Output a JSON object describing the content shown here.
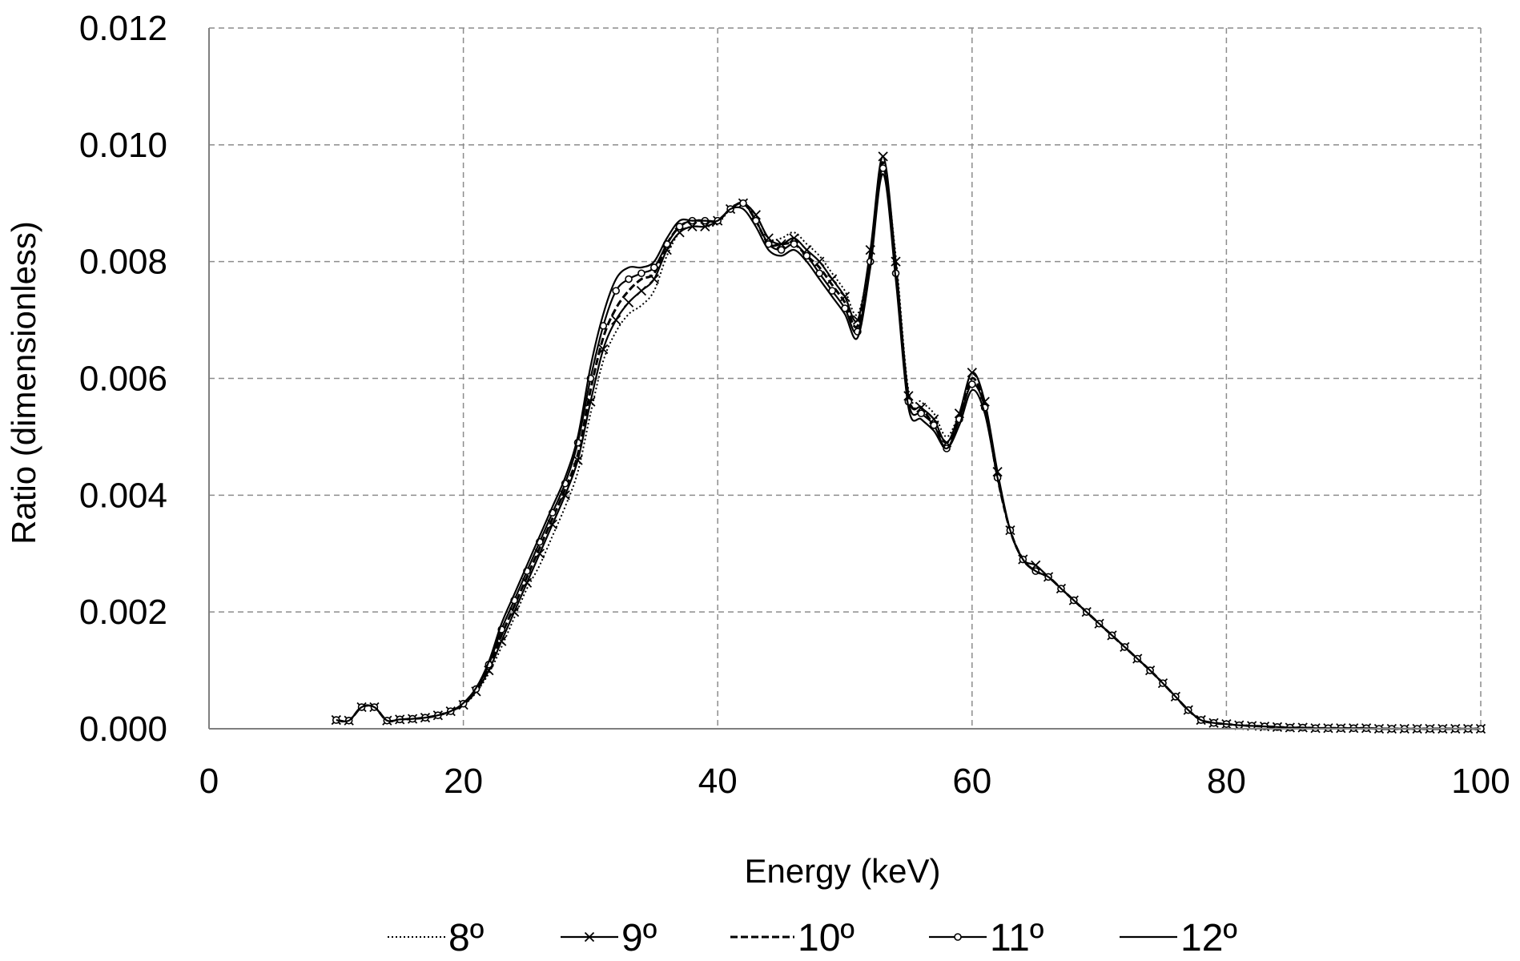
{
  "chart_data": {
    "type": "line",
    "xlabel": "Energy (keV)",
    "ylabel": "Ratio (dimensionless)",
    "xlim": [
      0,
      100
    ],
    "ylim": [
      0,
      0.012
    ],
    "x_ticks": [
      "0",
      "20",
      "40",
      "60",
      "80",
      "100"
    ],
    "y_ticks": [
      "0.000",
      "0.002",
      "0.004",
      "0.006",
      "0.008",
      "0.010",
      "0.012"
    ],
    "grid": true,
    "legend_position": "bottom",
    "line_color": "#000000",
    "grid_color": "#8c8c8c",
    "series": [
      {
        "name": "8º",
        "style": "dotted",
        "x": [
          10,
          11,
          12,
          13,
          14,
          15,
          16,
          17,
          18,
          19,
          20,
          21,
          22,
          23,
          24,
          25,
          26,
          27,
          28,
          29,
          30,
          31,
          32,
          33,
          34,
          35,
          36,
          37,
          38,
          39,
          40,
          41,
          42,
          43,
          44,
          45,
          46,
          47,
          48,
          49,
          50,
          51,
          52,
          53,
          54,
          55,
          56,
          57,
          58,
          59,
          60,
          61,
          62,
          63,
          64,
          65,
          66,
          67,
          68,
          69,
          70,
          71,
          72,
          73,
          74,
          75,
          76,
          77,
          78,
          79,
          80,
          81,
          82,
          83,
          84,
          85,
          86,
          87,
          88,
          89,
          90,
          91,
          92,
          93,
          94,
          95,
          96,
          97,
          98,
          99,
          100
        ],
        "y": [
          0.00015,
          0.00014,
          0.00037,
          0.00037,
          0.00014,
          0.00016,
          0.00017,
          0.00019,
          0.00023,
          0.0003,
          0.0004,
          0.00062,
          0.00095,
          0.0014,
          0.0019,
          0.0024,
          0.0028,
          0.0033,
          0.0038,
          0.0044,
          0.0054,
          0.0063,
          0.0068,
          0.0071,
          0.00725,
          0.0075,
          0.0081,
          0.0085,
          0.0086,
          0.0086,
          0.00865,
          0.0089,
          0.009,
          0.0088,
          0.0084,
          0.0084,
          0.0085,
          0.0083,
          0.0081,
          0.0078,
          0.0075,
          0.0071,
          0.0081,
          0.0096,
          0.0081,
          0.0058,
          0.0056,
          0.0054,
          0.005,
          0.0054,
          0.0059,
          0.0056,
          0.0043,
          0.0034,
          0.0029,
          0.0028,
          0.0026,
          0.0024,
          0.0022,
          0.002,
          0.0018,
          0.0016,
          0.0014,
          0.0012,
          0.001,
          0.00078,
          0.00055,
          0.00032,
          0.00015,
          0.0001,
          8e-05,
          6e-05,
          5e-05,
          4e-05,
          3e-05,
          2e-05,
          2e-05,
          1e-05,
          1e-05,
          1e-05,
          1e-05,
          1e-05,
          0,
          0,
          0,
          0,
          0,
          0,
          0,
          0,
          0
        ]
      },
      {
        "name": "9º",
        "style": "solid-x",
        "x": [
          10,
          11,
          12,
          13,
          14,
          15,
          16,
          17,
          18,
          19,
          20,
          21,
          22,
          23,
          24,
          25,
          26,
          27,
          28,
          29,
          30,
          31,
          32,
          33,
          34,
          35,
          36,
          37,
          38,
          39,
          40,
          41,
          42,
          43,
          44,
          45,
          46,
          47,
          48,
          49,
          50,
          51,
          52,
          53,
          54,
          55,
          56,
          57,
          58,
          59,
          60,
          61,
          62,
          63,
          64,
          65,
          66,
          67,
          68,
          69,
          70,
          71,
          72,
          73,
          74,
          75,
          76,
          77,
          78,
          79,
          80,
          81,
          82,
          83,
          84,
          85,
          86,
          87,
          88,
          89,
          90,
          91,
          92,
          93,
          94,
          95,
          96,
          97,
          98,
          99,
          100
        ],
        "y": [
          0.00015,
          0.00014,
          0.00037,
          0.00037,
          0.00014,
          0.00016,
          0.00017,
          0.00019,
          0.00023,
          0.0003,
          0.00041,
          0.00064,
          0.001,
          0.0015,
          0.002,
          0.0025,
          0.003,
          0.0035,
          0.004,
          0.0046,
          0.0056,
          0.0065,
          0.007,
          0.0073,
          0.0075,
          0.0077,
          0.0082,
          0.0085,
          0.0086,
          0.0086,
          0.0087,
          0.0089,
          0.009,
          0.0088,
          0.0084,
          0.0083,
          0.0084,
          0.0082,
          0.008,
          0.0077,
          0.0074,
          0.007,
          0.0082,
          0.0098,
          0.008,
          0.0057,
          0.0055,
          0.0053,
          0.0049,
          0.0054,
          0.0061,
          0.0056,
          0.0044,
          0.0034,
          0.0029,
          0.0028,
          0.0026,
          0.0024,
          0.0022,
          0.002,
          0.0018,
          0.0016,
          0.0014,
          0.0012,
          0.001,
          0.00078,
          0.00055,
          0.00032,
          0.00015,
          0.0001,
          8e-05,
          6e-05,
          5e-05,
          4e-05,
          3e-05,
          2e-05,
          2e-05,
          1e-05,
          1e-05,
          1e-05,
          1e-05,
          1e-05,
          0,
          0,
          0,
          0,
          0,
          0,
          0,
          0,
          0
        ]
      },
      {
        "name": "10º",
        "style": "dashed",
        "x": [
          10,
          11,
          12,
          13,
          14,
          15,
          16,
          17,
          18,
          19,
          20,
          21,
          22,
          23,
          24,
          25,
          26,
          27,
          28,
          29,
          30,
          31,
          32,
          33,
          34,
          35,
          36,
          37,
          38,
          39,
          40,
          41,
          42,
          43,
          44,
          45,
          46,
          47,
          48,
          49,
          50,
          51,
          52,
          53,
          54,
          55,
          56,
          57,
          58,
          59,
          60,
          61,
          62,
          63,
          64,
          65,
          66,
          67,
          68,
          69,
          70,
          71,
          72,
          73,
          74,
          75,
          76,
          77,
          78,
          79,
          80,
          81,
          82,
          83,
          84,
          85,
          86,
          87,
          88,
          89,
          90,
          91,
          92,
          93,
          94,
          95,
          96,
          97,
          98,
          99,
          100
        ],
        "y": [
          0.00015,
          0.00014,
          0.00037,
          0.00037,
          0.00014,
          0.00016,
          0.00017,
          0.00019,
          0.00023,
          0.0003,
          0.00042,
          0.00066,
          0.00105,
          0.0016,
          0.0021,
          0.0026,
          0.0031,
          0.0036,
          0.0041,
          0.0047,
          0.0058,
          0.0067,
          0.0072,
          0.0075,
          0.0077,
          0.0078,
          0.0083,
          0.0086,
          0.0087,
          0.0087,
          0.0087,
          0.0089,
          0.009,
          0.0087,
          0.0083,
          0.0083,
          0.0083,
          0.0081,
          0.0079,
          0.0076,
          0.0073,
          0.0069,
          0.0081,
          0.0097,
          0.0079,
          0.0057,
          0.0055,
          0.0052,
          0.0049,
          0.0053,
          0.006,
          0.0055,
          0.0043,
          0.0034,
          0.0029,
          0.0027,
          0.0026,
          0.0024,
          0.0022,
          0.002,
          0.0018,
          0.0016,
          0.0014,
          0.0012,
          0.001,
          0.00078,
          0.00055,
          0.00032,
          0.00015,
          0.0001,
          8e-05,
          6e-05,
          5e-05,
          4e-05,
          3e-05,
          2e-05,
          2e-05,
          1e-05,
          1e-05,
          1e-05,
          1e-05,
          1e-05,
          0,
          0,
          0,
          0,
          0,
          0,
          0,
          0,
          0
        ]
      },
      {
        "name": "11º",
        "style": "solid-o",
        "x": [
          10,
          11,
          12,
          13,
          14,
          15,
          16,
          17,
          18,
          19,
          20,
          21,
          22,
          23,
          24,
          25,
          26,
          27,
          28,
          29,
          30,
          31,
          32,
          33,
          34,
          35,
          36,
          37,
          38,
          39,
          40,
          41,
          42,
          43,
          44,
          45,
          46,
          47,
          48,
          49,
          50,
          51,
          52,
          53,
          54,
          55,
          56,
          57,
          58,
          59,
          60,
          61,
          62,
          63,
          64,
          65,
          66,
          67,
          68,
          69,
          70,
          71,
          72,
          73,
          74,
          75,
          76,
          77,
          78,
          79,
          80,
          81,
          82,
          83,
          84,
          85,
          86,
          87,
          88,
          89,
          90,
          91,
          92,
          93,
          94,
          95,
          96,
          97,
          98,
          99,
          100
        ],
        "y": [
          0.00015,
          0.00014,
          0.00037,
          0.00037,
          0.00014,
          0.00016,
          0.00017,
          0.00019,
          0.00023,
          0.0003,
          0.00043,
          0.00068,
          0.0011,
          0.0017,
          0.0022,
          0.0027,
          0.0032,
          0.0037,
          0.0042,
          0.0049,
          0.006,
          0.0069,
          0.0075,
          0.0077,
          0.0078,
          0.0079,
          0.0083,
          0.0086,
          0.0087,
          0.0087,
          0.0087,
          0.0089,
          0.009,
          0.0087,
          0.0083,
          0.0082,
          0.0083,
          0.0081,
          0.0078,
          0.0075,
          0.0072,
          0.0068,
          0.008,
          0.0096,
          0.0078,
          0.0056,
          0.0054,
          0.0052,
          0.0048,
          0.0053,
          0.0059,
          0.0055,
          0.0043,
          0.0034,
          0.0029,
          0.0027,
          0.0026,
          0.0024,
          0.0022,
          0.002,
          0.0018,
          0.0016,
          0.0014,
          0.0012,
          0.001,
          0.00078,
          0.00055,
          0.00032,
          0.00015,
          0.0001,
          8e-05,
          6e-05,
          5e-05,
          4e-05,
          3e-05,
          2e-05,
          2e-05,
          1e-05,
          1e-05,
          1e-05,
          1e-05,
          1e-05,
          0,
          0,
          0,
          0,
          0,
          0,
          0,
          0,
          0
        ]
      },
      {
        "name": "12º",
        "style": "solid",
        "x": [
          10,
          11,
          12,
          13,
          14,
          15,
          16,
          17,
          18,
          19,
          20,
          21,
          22,
          23,
          24,
          25,
          26,
          27,
          28,
          29,
          30,
          31,
          32,
          33,
          34,
          35,
          36,
          37,
          38,
          39,
          40,
          41,
          42,
          43,
          44,
          45,
          46,
          47,
          48,
          49,
          50,
          51,
          52,
          53,
          54,
          55,
          56,
          57,
          58,
          59,
          60,
          61,
          62,
          63,
          64,
          65,
          66,
          67,
          68,
          69,
          70,
          71,
          72,
          73,
          74,
          75,
          76,
          77,
          78,
          79,
          80,
          81,
          82,
          83,
          84,
          85,
          86,
          87,
          88,
          89,
          90,
          91,
          92,
          93,
          94,
          95,
          96,
          97,
          98,
          99,
          100
        ],
        "y": [
          0.00015,
          0.00014,
          0.00037,
          0.00037,
          0.00014,
          0.00016,
          0.00017,
          0.00019,
          0.00023,
          0.0003,
          0.00044,
          0.0007,
          0.00115,
          0.0018,
          0.0023,
          0.0028,
          0.0033,
          0.0038,
          0.0043,
          0.005,
          0.0062,
          0.0071,
          0.0077,
          0.0079,
          0.0079,
          0.008,
          0.0084,
          0.0087,
          0.0087,
          0.0087,
          0.0087,
          0.0089,
          0.0089,
          0.0086,
          0.0082,
          0.0081,
          0.0082,
          0.008,
          0.0077,
          0.0074,
          0.0071,
          0.0067,
          0.0079,
          0.0095,
          0.0077,
          0.0055,
          0.0053,
          0.0051,
          0.0048,
          0.0052,
          0.0058,
          0.0054,
          0.0043,
          0.0034,
          0.0029,
          0.0027,
          0.0026,
          0.0024,
          0.0022,
          0.002,
          0.0018,
          0.0016,
          0.0014,
          0.0012,
          0.001,
          0.00078,
          0.00055,
          0.00032,
          0.00015,
          0.0001,
          8e-05,
          6e-05,
          5e-05,
          4e-05,
          3e-05,
          2e-05,
          2e-05,
          1e-05,
          1e-05,
          1e-05,
          1e-05,
          1e-05,
          0,
          0,
          0,
          0,
          0,
          0,
          0,
          0,
          0
        ]
      }
    ]
  }
}
